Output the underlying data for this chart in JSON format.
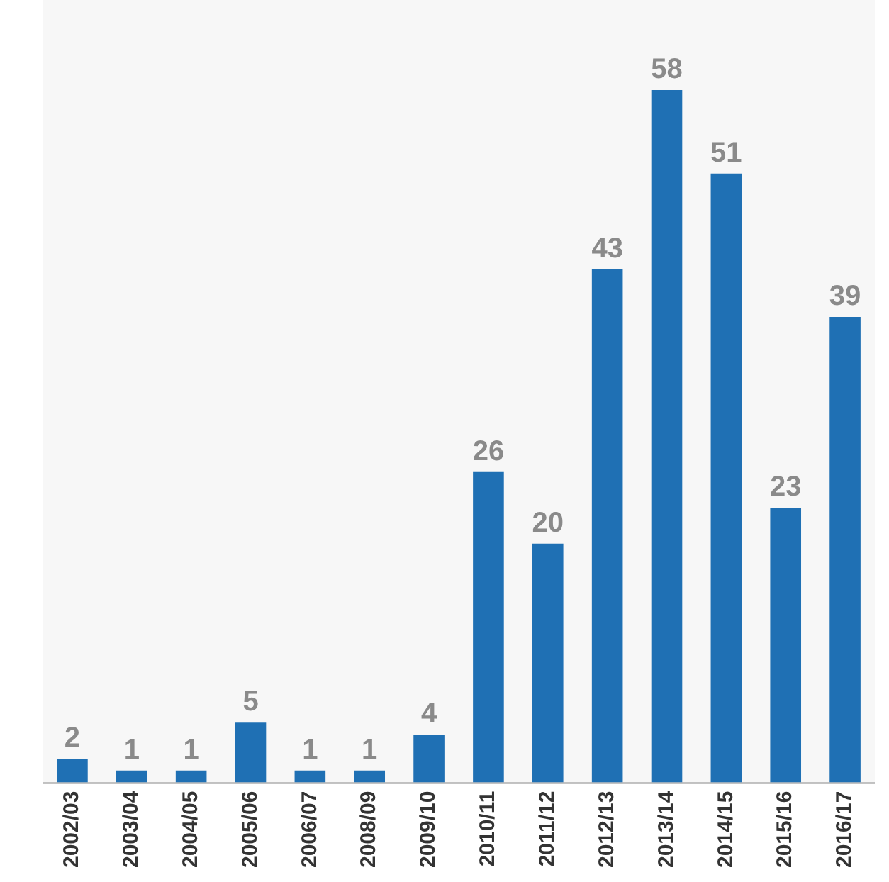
{
  "chart_data": {
    "type": "bar",
    "categories": [
      "2002/03",
      "2003/04",
      "2004/05",
      "2005/06",
      "2006/07",
      "2008/09",
      "2009/10",
      "2010/11",
      "2011/12",
      "2012/13",
      "2013/14",
      "2014/15",
      "2015/16",
      "2016/17"
    ],
    "values": [
      2,
      1,
      1,
      5,
      1,
      1,
      4,
      26,
      20,
      43,
      58,
      51,
      23,
      39
    ],
    "color": "#1f70b4",
    "relative": false,
    "data_labels": true,
    "grid": false,
    "legend": false
  }
}
